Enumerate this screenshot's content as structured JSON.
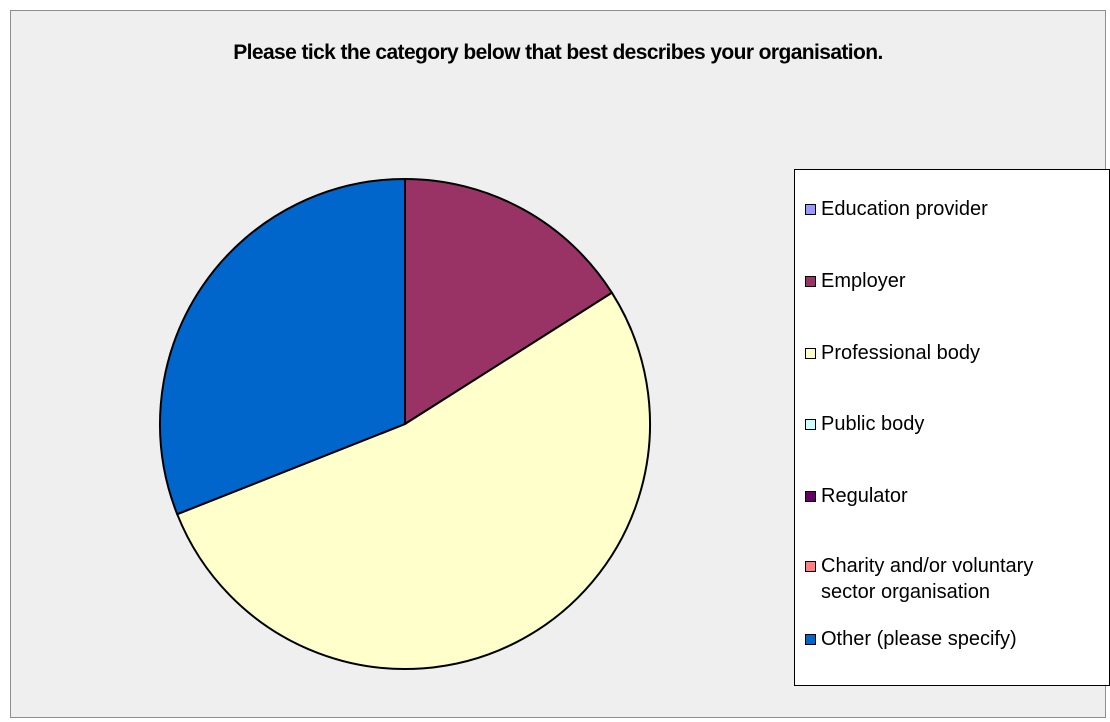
{
  "chart_data": {
    "type": "pie",
    "title": "Please tick the category below that best describes your organisation.",
    "categories": [
      "Education provider",
      "Employer",
      "Professional body",
      "Public body",
      "Regulator",
      "Charity and/or voluntary\nsector organisation",
      "Other (please specify)"
    ],
    "values": [
      0,
      16,
      53,
      0,
      0,
      0,
      31
    ],
    "value_unit": "percent (estimated)",
    "colors": [
      "#9999ff",
      "#993366",
      "#ffffcc",
      "#ccffff",
      "#660066",
      "#ff8080",
      "#0066cc"
    ],
    "legend_placement": "right"
  }
}
